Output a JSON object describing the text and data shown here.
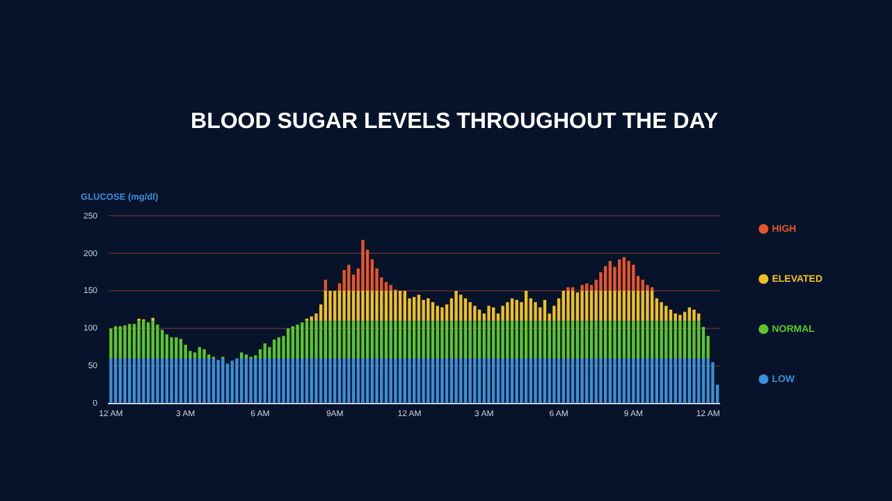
{
  "chart_data": {
    "type": "bar",
    "title": "BLOOD SUGAR LEVELS THROUGHOUT THE DAY",
    "ylabel": "GLUCOSE (mg/dl)",
    "stacked": true,
    "grid": "y",
    "legend": "right",
    "ylim": [
      0,
      250
    ],
    "yticks": [
      0,
      50,
      100,
      150,
      200,
      250
    ],
    "categories": [
      "12 AM",
      null,
      null,
      null,
      null,
      null,
      null,
      null,
      null,
      null,
      null,
      null,
      null,
      null,
      null,
      null,
      "3 AM",
      null,
      null,
      null,
      null,
      null,
      null,
      null,
      null,
      null,
      null,
      null,
      null,
      null,
      null,
      null,
      "6 AM",
      null,
      null,
      null,
      null,
      null,
      null,
      null,
      null,
      null,
      null,
      null,
      null,
      null,
      null,
      null,
      "9AM",
      null,
      null,
      null,
      null,
      null,
      null,
      null,
      null,
      null,
      null,
      null,
      null,
      null,
      null,
      null,
      "12 AM",
      null,
      null,
      null,
      null,
      null,
      null,
      null,
      null,
      null,
      null,
      null,
      null,
      null,
      null,
      null,
      "3 AM",
      null,
      null,
      null,
      null,
      null,
      null,
      null,
      null,
      null,
      null,
      null,
      null,
      null,
      null,
      null,
      "6 AM",
      null,
      null,
      null,
      null,
      null,
      null,
      null,
      null,
      null,
      null,
      null,
      null,
      null,
      null,
      null,
      "9 AM",
      null,
      null,
      null,
      null,
      null,
      null,
      null,
      null,
      null,
      null,
      null,
      null,
      null,
      null,
      null,
      "12 AM",
      null,
      null
    ],
    "series": [
      {
        "name": "LOW",
        "color": "#3a8fd8",
        "values": [
          60,
          60,
          60,
          60,
          60,
          60,
          60,
          60,
          60,
          60,
          60,
          60,
          60,
          60,
          60,
          60,
          60,
          60,
          60,
          60,
          60,
          60,
          60,
          58,
          60,
          53,
          57,
          60,
          60,
          60,
          60,
          60,
          60,
          60,
          60,
          60,
          60,
          60,
          60,
          60,
          60,
          60,
          60,
          60,
          60,
          60,
          60,
          60,
          60,
          60,
          60,
          60,
          60,
          60,
          60,
          60,
          60,
          60,
          60,
          60,
          60,
          60,
          60,
          60,
          60,
          60,
          60,
          60,
          60,
          60,
          60,
          60,
          60,
          60,
          60,
          60,
          60,
          60,
          60,
          60,
          60,
          60,
          60,
          60,
          60,
          60,
          60,
          60,
          60,
          60,
          60,
          60,
          60,
          60,
          60,
          60,
          60,
          60,
          60,
          60,
          60,
          60,
          60,
          60,
          60,
          60,
          60,
          60,
          60,
          60,
          60,
          60,
          60,
          60,
          60,
          60,
          60,
          60,
          60,
          60,
          60,
          60,
          60,
          60,
          60,
          60,
          60,
          60,
          60,
          55,
          25
        ]
      },
      {
        "name": "NORMAL",
        "color": "#5cc62a",
        "values": [
          40,
          43,
          43,
          44,
          46,
          46,
          50,
          50,
          48,
          50,
          45,
          38,
          32,
          28,
          28,
          26,
          18,
          10,
          8,
          15,
          12,
          5,
          2,
          0,
          2,
          0,
          0,
          0,
          8,
          5,
          2,
          4,
          12,
          20,
          15,
          25,
          28,
          30,
          40,
          43,
          45,
          48,
          50,
          50,
          50,
          50,
          50,
          50,
          50,
          50,
          50,
          50,
          50,
          50,
          50,
          50,
          50,
          50,
          50,
          50,
          50,
          50,
          50,
          50,
          50,
          50,
          50,
          50,
          50,
          50,
          50,
          50,
          50,
          50,
          50,
          50,
          50,
          50,
          50,
          50,
          50,
          50,
          50,
          50,
          50,
          50,
          50,
          50,
          50,
          50,
          50,
          50,
          50,
          50,
          50,
          50,
          50,
          50,
          50,
          50,
          50,
          50,
          50,
          50,
          50,
          50,
          50,
          50,
          50,
          50,
          50,
          50,
          50,
          50,
          50,
          50,
          50,
          50,
          50,
          50,
          50,
          50,
          50,
          50,
          50,
          50,
          50,
          42,
          30,
          0,
          0
        ]
      },
      {
        "name": "ELEVATED",
        "color": "#f0c020",
        "values": [
          0,
          0,
          0,
          0,
          0,
          0,
          3,
          2,
          0,
          4,
          0,
          0,
          0,
          0,
          0,
          0,
          0,
          0,
          0,
          0,
          0,
          0,
          0,
          0,
          0,
          0,
          0,
          0,
          0,
          0,
          0,
          0,
          0,
          0,
          0,
          0,
          0,
          0,
          0,
          0,
          0,
          0,
          3,
          6,
          10,
          22,
          40,
          40,
          40,
          40,
          40,
          40,
          40,
          40,
          40,
          40,
          40,
          40,
          40,
          40,
          40,
          40,
          40,
          40,
          30,
          32,
          35,
          28,
          30,
          25,
          20,
          18,
          22,
          30,
          40,
          35,
          30,
          25,
          20,
          15,
          10,
          20,
          18,
          10,
          20,
          25,
          30,
          28,
          25,
          40,
          30,
          25,
          18,
          28,
          10,
          20,
          30,
          40,
          40,
          40,
          38,
          40,
          40,
          40,
          40,
          40,
          40,
          40,
          40,
          40,
          40,
          40,
          40,
          40,
          40,
          40,
          40,
          30,
          25,
          20,
          15,
          10,
          8,
          12,
          18,
          15,
          10,
          0,
          0,
          0,
          0
        ]
      },
      {
        "name": "HIGH",
        "color": "#e8552a",
        "values": [
          0,
          0,
          0,
          0,
          0,
          0,
          0,
          0,
          0,
          0,
          0,
          0,
          0,
          0,
          0,
          0,
          0,
          0,
          0,
          0,
          0,
          0,
          0,
          0,
          0,
          0,
          0,
          0,
          0,
          0,
          0,
          0,
          0,
          0,
          0,
          0,
          0,
          0,
          0,
          0,
          0,
          0,
          0,
          0,
          0,
          0,
          15,
          0,
          0,
          10,
          28,
          35,
          22,
          30,
          68,
          55,
          42,
          30,
          18,
          12,
          8,
          2,
          0,
          0,
          0,
          0,
          0,
          0,
          0,
          0,
          0,
          0,
          0,
          0,
          0,
          0,
          0,
          0,
          0,
          0,
          0,
          0,
          0,
          0,
          0,
          0,
          0,
          0,
          0,
          0,
          0,
          0,
          0,
          0,
          0,
          0,
          0,
          0,
          5,
          5,
          0,
          8,
          10,
          8,
          15,
          25,
          33,
          40,
          32,
          42,
          45,
          40,
          35,
          20,
          15,
          8,
          5,
          0,
          0,
          0,
          0,
          0,
          0,
          0,
          0,
          0,
          0,
          0,
          0,
          0,
          0
        ]
      }
    ]
  }
}
